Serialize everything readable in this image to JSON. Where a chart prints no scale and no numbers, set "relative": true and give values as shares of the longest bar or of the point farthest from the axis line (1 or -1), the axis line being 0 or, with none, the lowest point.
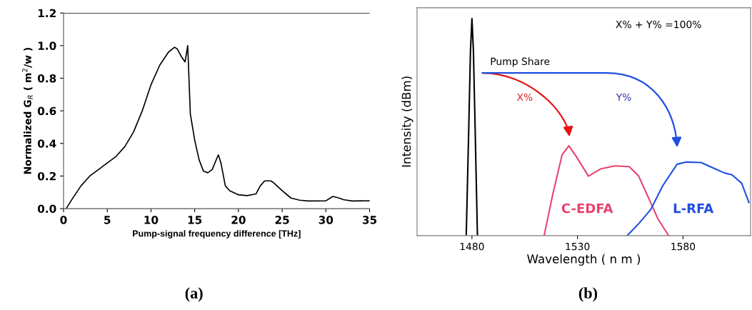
{
  "chart_data": [
    {
      "type": "line",
      "xlabel": "Pump-signal frequency difference [THz]",
      "ylabel": "Normalized G$_{R}$ ( m$^{2}$/w )",
      "xlim": [
        0,
        35
      ],
      "xticks": [
        0,
        5,
        10,
        15,
        20,
        25,
        30,
        35
      ],
      "ylim": [
        0,
        1.2
      ],
      "yticks": [
        {
          "value": 0,
          "label": "0.0"
        },
        0.2,
        0.4,
        0.6,
        0.8,
        {
          "value": 1,
          "label": "1.0"
        },
        1.2
      ],
      "grid": false,
      "legend": false,
      "marker": "none",
      "line_style": "solid",
      "series": [
        {
          "color": "#000000",
          "x": [
            0.3,
            1,
            2,
            3,
            4,
            5,
            6,
            7,
            8,
            9,
            10,
            11,
            12,
            12.7,
            13,
            13.5,
            13.9,
            14.2,
            14.5,
            15,
            15.5,
            16,
            16.5,
            17,
            17.7,
            18,
            18.5,
            19,
            20,
            21,
            22,
            22.5,
            23,
            23.7,
            24,
            25,
            26,
            27,
            28,
            30,
            30.5,
            30.8,
            31.5,
            32,
            33,
            35
          ],
          "values": [
            0.0,
            0.06,
            0.14,
            0.2,
            0.24,
            0.28,
            0.32,
            0.38,
            0.47,
            0.6,
            0.76,
            0.88,
            0.96,
            0.99,
            0.98,
            0.93,
            0.9,
            1.0,
            0.58,
            0.42,
            0.3,
            0.23,
            0.22,
            0.24,
            0.33,
            0.28,
            0.14,
            0.11,
            0.085,
            0.08,
            0.09,
            0.14,
            0.17,
            0.17,
            0.16,
            0.11,
            0.065,
            0.052,
            0.047,
            0.048,
            0.065,
            0.075,
            0.065,
            0.055,
            0.047,
            0.048
          ]
        }
      ],
      "annotations": [
        "(a)"
      ]
    },
    {
      "type": "line",
      "relative": true,
      "xlabel": "Wavelength ( n m )",
      "ylabel": "Intensity (dBm)",
      "tick_labels": "x",
      "xlim": [
        1454,
        1612
      ],
      "xticks": [
        1480,
        1530,
        1580
      ],
      "grid": false,
      "legend": false,
      "marker": "none",
      "line_style": "solid",
      "series": [
        {
          "color": "#000000",
          "x": [
            1477.3,
            1478.5,
            1479.3,
            1480,
            1480.7,
            1481.5,
            1482.6
          ],
          "values": [
            0,
            0.5,
            0.85,
            1,
            0.85,
            0.5,
            0
          ]
        },
        {
          "name": "C-EDFA",
          "color": "#e8436f",
          "x": [
            1514.2,
            1518.2,
            1522.7,
            1525.9,
            1529.6,
            1535.2,
            1540.9,
            1547.7,
            1554.5,
            1559.0,
            1563.6,
            1568.1,
            1573.2
          ],
          "values": [
            0,
            0.186,
            0.372,
            0.414,
            0.362,
            0.274,
            0.307,
            0.321,
            0.318,
            0.274,
            0.175,
            0.077,
            0
          ]
        },
        {
          "name": "L-RFA",
          "color": "#1f4fe0",
          "x": [
            1553.6,
            1559.0,
            1564.7,
            1570.4,
            1577.2,
            1581.7,
            1588.5,
            1595.3,
            1599.8,
            1603.2,
            1607.8,
            1611.2
          ],
          "values": [
            0,
            0.055,
            0.12,
            0.23,
            0.329,
            0.339,
            0.337,
            0.307,
            0.288,
            0.28,
            0.241,
            0.153
          ]
        }
      ],
      "annotations": [
        "Pump Share",
        "X%",
        "Y%",
        "X% + Y% =100%",
        "(b)"
      ]
    }
  ]
}
